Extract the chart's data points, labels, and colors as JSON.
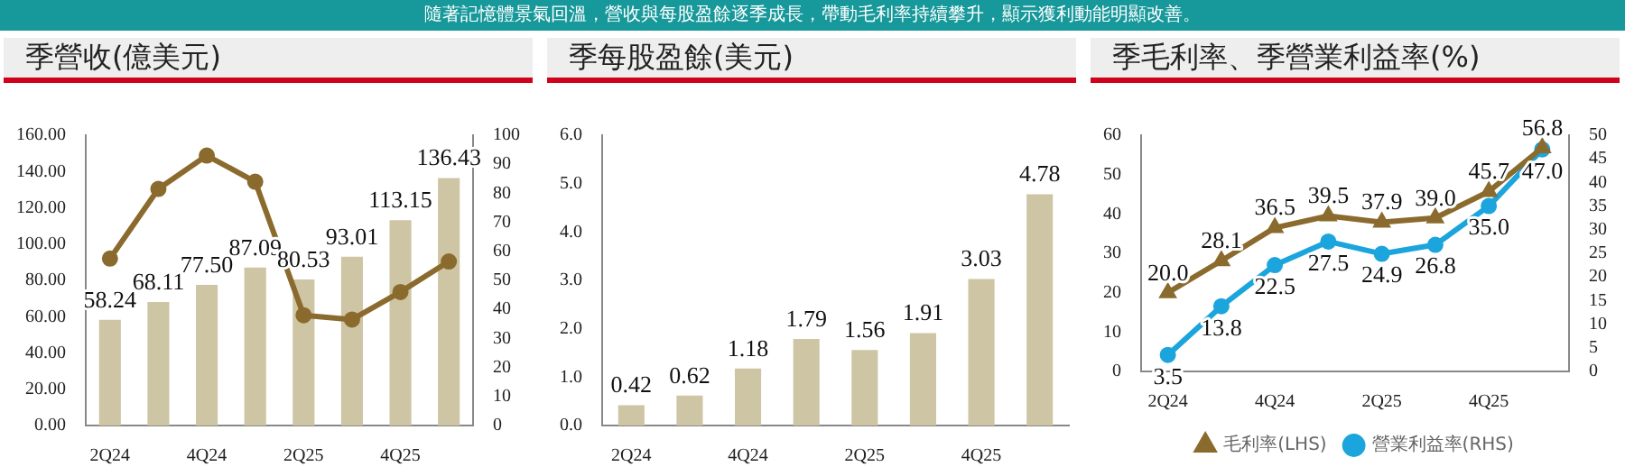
{
  "chart_data": [
    {
      "type": "bar",
      "title": "季營收(億美元)",
      "annotations": [
        "隨著記憶體景氣回溫，營收與每股盈餘逐季成長，帶動毛利率持續攀升，顯示獲利動能明顯改善。"
      ],
      "categories": [
        "2Q24",
        null,
        "4Q24",
        null,
        "2Q25",
        null,
        "4Q25",
        null
      ],
      "series": [
        {
          "type": "bar",
          "color": "#cdc5a3",
          "values": [
            58.24,
            68.11,
            77.5,
            87.09,
            80.53,
            93.01,
            113.15,
            136.43
          ],
          "value_labels": [
            "58.24",
            "68.11",
            "77.50",
            "87.09",
            "80.53",
            "93.01",
            "113.15",
            "136.43"
          ]
        },
        {
          "type": "line",
          "axis": "y2",
          "color": "#8b6a2e",
          "marker": "circle",
          "values": [
            57.5,
            81.5,
            93,
            84,
            38,
            36.5,
            46,
            56.5
          ]
        }
      ],
      "ylim": [
        0,
        160
      ],
      "yticks": [
        {
          "value": 0,
          "label": "0.00"
        },
        {
          "value": 20,
          "label": "20.00"
        },
        {
          "value": 40,
          "label": "40.00"
        },
        {
          "value": 60,
          "label": "60.00"
        },
        {
          "value": 80,
          "label": "80.00"
        },
        {
          "value": 100,
          "label": "100.00"
        },
        {
          "value": 120,
          "label": "120.00"
        },
        {
          "value": 140,
          "label": "140.00"
        },
        {
          "value": 160,
          "label": "160.00"
        }
      ],
      "y2lim": [
        0,
        100
      ],
      "y2ticks": [
        0,
        10,
        20,
        30,
        40,
        50,
        60,
        70,
        80,
        90,
        100
      ],
      "grid": false
    },
    {
      "type": "bar",
      "title": "季每股盈餘(美元)",
      "categories": [
        "2Q24",
        null,
        "4Q24",
        null,
        "2Q25",
        null,
        "4Q25",
        null
      ],
      "series": [
        {
          "type": "bar",
          "color": "#cdc5a3",
          "values": [
            0.42,
            0.62,
            1.18,
            1.79,
            1.56,
            1.91,
            3.03,
            4.78
          ],
          "value_labels": [
            "0.42",
            "0.62",
            "1.18",
            "1.79",
            "1.56",
            "1.91",
            "3.03",
            "4.78"
          ]
        }
      ],
      "ylim": [
        0,
        6
      ],
      "yticks": [
        {
          "value": 0,
          "label": "0.0"
        },
        {
          "value": 1,
          "label": "1.0"
        },
        {
          "value": 2,
          "label": "2.0"
        },
        {
          "value": 3,
          "label": "3.0"
        },
        {
          "value": 4,
          "label": "4.0"
        },
        {
          "value": 5,
          "label": "5.0"
        },
        {
          "value": 6,
          "label": "6.0"
        }
      ],
      "grid": false
    },
    {
      "type": "line",
      "title": "季毛利率、季營業利益率(%)",
      "categories": [
        "2Q24",
        null,
        "4Q24",
        null,
        "2Q25",
        null,
        "4Q25",
        null
      ],
      "series": [
        {
          "name": "毛利率(LHS)",
          "color": "#8b6a2e",
          "marker": "triangle",
          "values": [
            20.0,
            28.1,
            36.5,
            39.5,
            37.9,
            39.0,
            45.7,
            56.8
          ],
          "value_labels": [
            "20.0",
            "28.1",
            "36.5",
            "39.5",
            "37.9",
            "39.0",
            "45.7",
            "56.8"
          ]
        },
        {
          "name": "營業利益率(RHS)",
          "axis": "y2",
          "color": "#1ba5dc",
          "marker": "circle",
          "values": [
            3.5,
            13.8,
            22.5,
            27.5,
            24.9,
            26.8,
            35.0,
            47.0
          ],
          "value_labels": [
            "3.5",
            "13.8",
            "22.5",
            "27.5",
            "24.9",
            "26.8",
            "35.0",
            "47.0"
          ]
        }
      ],
      "ylim": [
        0,
        60
      ],
      "yticks": [
        0,
        10,
        20,
        30,
        40,
        50,
        60
      ],
      "y2lim": [
        0,
        50
      ],
      "y2ticks": [
        0,
        5,
        10,
        15,
        20,
        25,
        30,
        35,
        40,
        45,
        50
      ],
      "grid": false,
      "legend": "bottom"
    }
  ]
}
